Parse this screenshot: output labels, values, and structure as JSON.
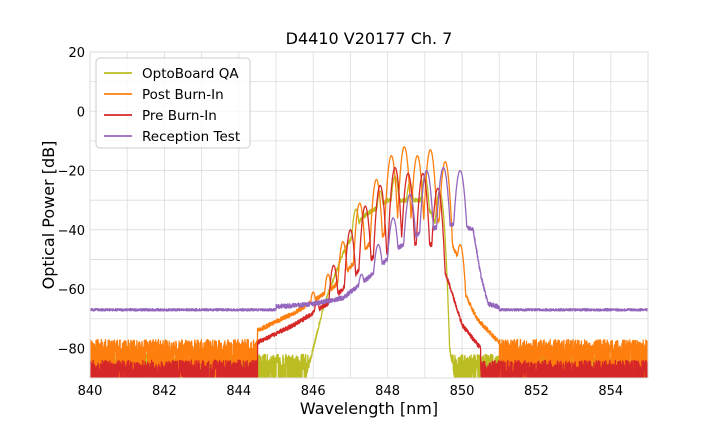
{
  "chart_data": {
    "type": "line",
    "title": "D4410 V20177 Ch. 7",
    "xlabel": "Wavelength [nm]",
    "ylabel": "Optical Power [dB]",
    "xlim": [
      840,
      855
    ],
    "ylim": [
      -90,
      20
    ],
    "xticks": [
      840,
      842,
      844,
      846,
      848,
      850,
      852,
      854
    ],
    "yticks": [
      20,
      0,
      -20,
      -40,
      -60,
      -80
    ],
    "ytick_labels": [
      "20",
      "0",
      "−20",
      "−40",
      "−60",
      "−80"
    ],
    "grid": true,
    "legend_position": "top-left",
    "series": [
      {
        "name": "OptoBoard QA",
        "color": "#bcbd22",
        "noise_floor": -84,
        "peaks": [
          {
            "x": 846.9,
            "y": -48,
            "w": 0.09
          },
          {
            "x": 847.15,
            "y": -33,
            "w": 0.09
          },
          {
            "x": 847.45,
            "y": -38,
            "w": 0.09
          },
          {
            "x": 847.8,
            "y": -27,
            "w": 0.09
          },
          {
            "x": 848.2,
            "y": -22,
            "w": 0.09
          },
          {
            "x": 848.6,
            "y": -24,
            "w": 0.09
          },
          {
            "x": 849.0,
            "y": -22,
            "w": 0.09
          },
          {
            "x": 849.4,
            "y": -27,
            "w": 0.09
          }
        ],
        "envelope": [
          [
            845.8,
            -90
          ],
          [
            846.3,
            -65
          ],
          [
            846.8,
            -48
          ],
          [
            847.3,
            -36
          ],
          [
            848.0,
            -30
          ],
          [
            849.0,
            -30
          ],
          [
            849.3,
            -38
          ],
          [
            849.6,
            -75
          ],
          [
            849.8,
            -90
          ]
        ]
      },
      {
        "name": "Post Burn-In",
        "color": "#ff7f0e",
        "noise_floor": -79,
        "peaks": [
          {
            "x": 846.0,
            "y": -61,
            "w": 0.09
          },
          {
            "x": 846.4,
            "y": -55,
            "w": 0.09
          },
          {
            "x": 846.8,
            "y": -44,
            "w": 0.09
          },
          {
            "x": 847.25,
            "y": -31,
            "w": 0.09
          },
          {
            "x": 847.7,
            "y": -23,
            "w": 0.09
          },
          {
            "x": 848.1,
            "y": -15,
            "w": 0.09
          },
          {
            "x": 848.45,
            "y": -12,
            "w": 0.09
          },
          {
            "x": 848.8,
            "y": -15,
            "w": 0.09
          },
          {
            "x": 849.15,
            "y": -13,
            "w": 0.09
          },
          {
            "x": 849.55,
            "y": -17,
            "w": 0.09
          },
          {
            "x": 849.95,
            "y": -45,
            "w": 0.09
          }
        ],
        "envelope": [
          [
            844.5,
            -74
          ],
          [
            845.5,
            -68
          ],
          [
            846.5,
            -60
          ],
          [
            847.5,
            -45
          ],
          [
            848.5,
            -37
          ],
          [
            849.5,
            -37
          ],
          [
            849.9,
            -50
          ],
          [
            850.1,
            -62
          ],
          [
            850.4,
            -70
          ],
          [
            851.0,
            -78
          ]
        ]
      },
      {
        "name": "Pre Burn-In",
        "color": "#d62728",
        "noise_floor": -86,
        "peaks": [
          {
            "x": 846.1,
            "y": -64,
            "w": 0.09
          },
          {
            "x": 846.55,
            "y": -52,
            "w": 0.09
          },
          {
            "x": 847.0,
            "y": -40,
            "w": 0.09
          },
          {
            "x": 847.4,
            "y": -32,
            "w": 0.09
          },
          {
            "x": 847.8,
            "y": -25,
            "w": 0.09
          },
          {
            "x": 848.2,
            "y": -19,
            "w": 0.09
          },
          {
            "x": 848.55,
            "y": -21,
            "w": 0.09
          },
          {
            "x": 848.95,
            "y": -21,
            "w": 0.09
          },
          {
            "x": 849.35,
            "y": -26,
            "w": 0.09
          }
        ],
        "envelope": [
          [
            844.5,
            -78
          ],
          [
            845.5,
            -72
          ],
          [
            846.5,
            -64
          ],
          [
            847.5,
            -50
          ],
          [
            848.5,
            -45
          ],
          [
            849.3,
            -45
          ],
          [
            849.7,
            -60
          ],
          [
            850.0,
            -72
          ],
          [
            850.5,
            -80
          ]
        ]
      },
      {
        "name": "Reception Test",
        "color": "#9467bd",
        "noise_floor": -67,
        "peaks": [
          {
            "x": 847.3,
            "y": -55,
            "w": 0.1
          },
          {
            "x": 847.75,
            "y": -45,
            "w": 0.1
          },
          {
            "x": 848.15,
            "y": -36,
            "w": 0.1
          },
          {
            "x": 848.6,
            "y": -28,
            "w": 0.1
          },
          {
            "x": 849.05,
            "y": -20,
            "w": 0.1
          },
          {
            "x": 849.5,
            "y": -19,
            "w": 0.1
          },
          {
            "x": 849.95,
            "y": -20,
            "w": 0.1
          }
        ],
        "envelope": [
          [
            845.0,
            -66
          ],
          [
            846.0,
            -65
          ],
          [
            846.8,
            -63
          ],
          [
            847.5,
            -56
          ],
          [
            848.3,
            -46
          ],
          [
            849.0,
            -40
          ],
          [
            849.8,
            -38
          ],
          [
            850.3,
            -40
          ],
          [
            850.5,
            -55
          ],
          [
            850.7,
            -65
          ],
          [
            851.0,
            -66
          ]
        ]
      }
    ]
  }
}
